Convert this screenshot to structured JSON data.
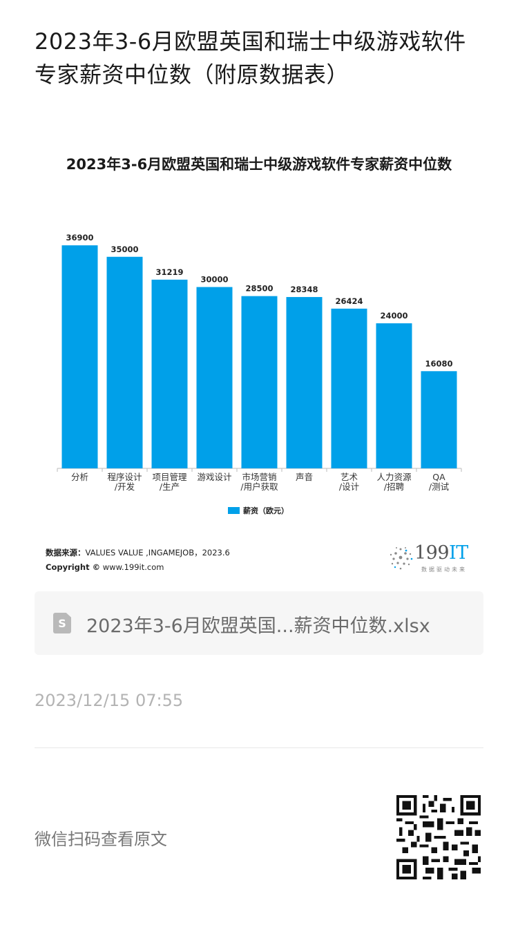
{
  "article": {
    "title": "2023年3-6月欧盟英国和瑞士中级游戏软件专家薪资中位数（附原数据表）",
    "timestamp": "2023/12/15 07:55",
    "scan_text": "微信扫码查看原文"
  },
  "chart_data": {
    "type": "bar",
    "title": "2023年3-6月欧盟英国和瑞士中级游戏软件专家薪资中位数",
    "categories": [
      [
        "分析"
      ],
      [
        "程序设计",
        "/开发"
      ],
      [
        "项目管理",
        "/生产"
      ],
      [
        "游戏设计"
      ],
      [
        "市场营销",
        "/用户获取"
      ],
      [
        "声音"
      ],
      [
        "艺术",
        "/设计"
      ],
      [
        "人力资源",
        "/招聘"
      ],
      [
        "QA",
        "/测试"
      ]
    ],
    "series": [
      {
        "name": "薪资（欧元）",
        "values": [
          36900,
          35000,
          31219,
          30000,
          28500,
          28348,
          26424,
          24000,
          16080
        ],
        "color": "#00a0e9"
      }
    ],
    "ylim": [
      0,
      40000
    ],
    "grid": false,
    "legend_position": "bottom"
  },
  "chart_footer": {
    "source_label": "数据来源：",
    "source_text": "VALUES VALUE ,INGAMEJOB，2023.6",
    "copyright_label": "Copyright ©",
    "copyright_text": "www.199it.com",
    "logo_main": "199",
    "logo_it": "IT",
    "logo_sub": "数据驱动未来"
  },
  "file": {
    "icon": "spreadsheet-file-icon",
    "icon_letter": "S",
    "name": "2023年3-6月欧盟英国...薪资中位数.xlsx"
  },
  "qr_icon": "qr-code-icon"
}
